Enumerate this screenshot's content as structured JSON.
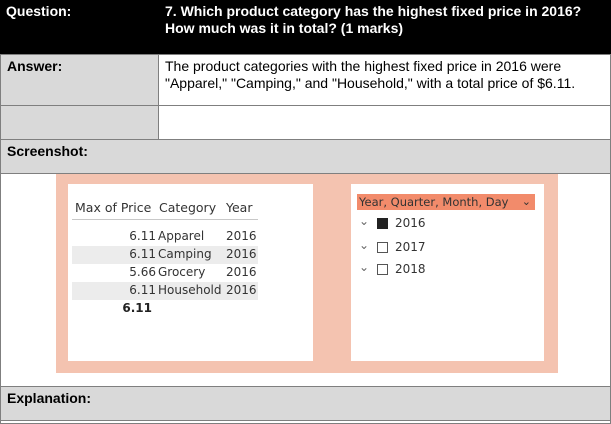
{
  "rows": {
    "question_label": "Question:",
    "question_text": "7. Which product category has the highest fixed price in 2016? How much was it in total? (1 marks)",
    "answer_label": "Answer:",
    "answer_text": "The product categories with the highest fixed price in 2016 were \"Apparel,\" \"Camping,\" and \"Household,\" with a total price of $6.11.",
    "screenshot_label": "Screenshot:",
    "explanation_label": "Explanation:"
  },
  "table_visual": {
    "headers": [
      "Max of Price",
      "Category",
      "Year"
    ],
    "rows": [
      {
        "price": "6.11",
        "category": "Apparel",
        "year": "2016"
      },
      {
        "price": "6.11",
        "category": "Camping",
        "year": "2016"
      },
      {
        "price": "5.66",
        "category": "Grocery",
        "year": "2016"
      },
      {
        "price": "6.11",
        "category": "Household",
        "year": "2016"
      }
    ],
    "total": "6.11"
  },
  "slicer": {
    "title": "Year, Quarter, Month, Day",
    "items": [
      {
        "label": "2016",
        "checked": true
      },
      {
        "label": "2017",
        "checked": false
      },
      {
        "label": "2018",
        "checked": false
      }
    ]
  },
  "colors": {
    "frame": "#f4c3b0",
    "slicer_header": "#f28b6b",
    "header_row": "#000000",
    "label_cells": "#d9d9d9"
  }
}
